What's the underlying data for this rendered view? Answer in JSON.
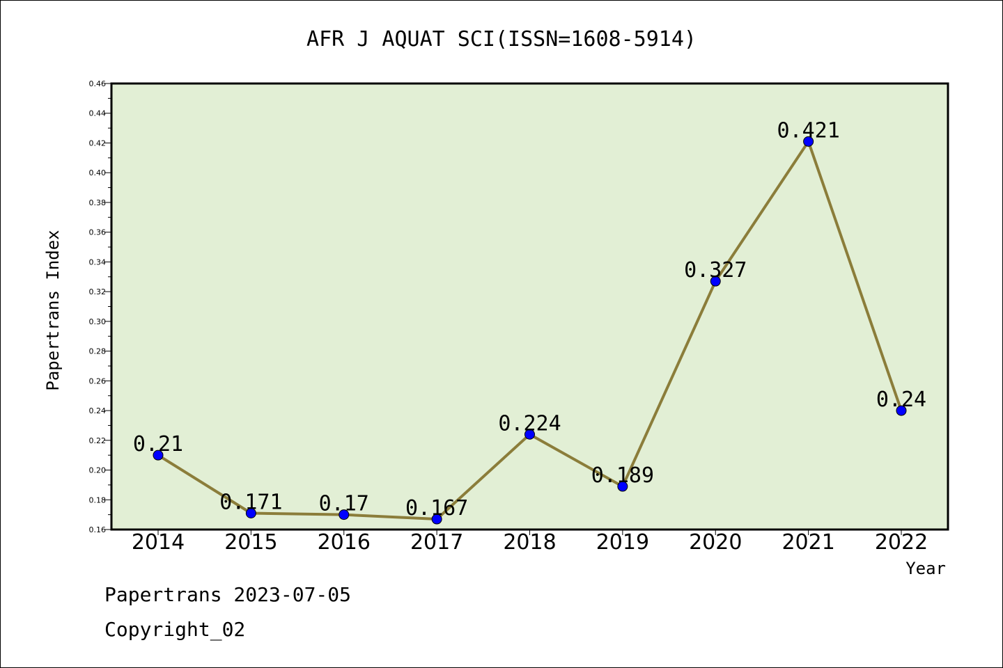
{
  "chart_data": {
    "type": "line",
    "title": "AFR J AQUAT SCI(ISSN=1608-5914)",
    "xlabel": "Year",
    "ylabel": "Papertrans Index",
    "categories": [
      "2014",
      "2015",
      "2016",
      "2017",
      "2018",
      "2019",
      "2020",
      "2021",
      "2022"
    ],
    "values": [
      0.21,
      0.171,
      0.17,
      0.167,
      0.224,
      0.189,
      0.327,
      0.421,
      0.24
    ],
    "data_labels": [
      "0.21",
      "0.171",
      "0.17",
      "0.167",
      "0.224",
      "0.189",
      "0.327",
      "0.421",
      "0.24"
    ],
    "ylim": [
      0.16,
      0.46
    ],
    "yticks": [
      "0.16",
      "0.18",
      "0.20",
      "0.22",
      "0.24",
      "0.26",
      "0.28",
      "0.30",
      "0.32",
      "0.34",
      "0.36",
      "0.38",
      "0.40",
      "0.42",
      "0.44",
      "0.46"
    ],
    "grid": false,
    "line_color": "#8b7d3a",
    "marker_color": "#0000ff",
    "plot_background": "#e2efd5"
  },
  "footer": {
    "line1": "Papertrans 2023-07-05",
    "line2": "Copyright_02"
  }
}
